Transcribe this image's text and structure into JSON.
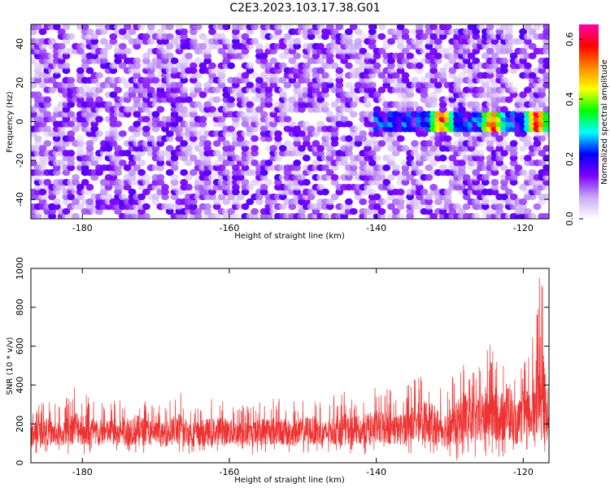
{
  "figure": {
    "title": "C2E3.2023.103.17.38.G01"
  },
  "chart_data": [
    {
      "type": "heatmap",
      "title": "C2E3.2023.103.17.38.G01",
      "xlabel": "Height of straight line (km)",
      "ylabel": "Frequency (Hz)",
      "xlim": [
        -187,
        -116.5
      ],
      "ylim": [
        -50,
        50
      ],
      "xticks": [
        -180,
        -160,
        -140,
        -120
      ],
      "yticks": [
        -40,
        -20,
        0,
        20,
        40
      ],
      "grid": false,
      "colorbar": {
        "label": "Normalized spectral amplitude",
        "range": [
          0,
          0.65
        ],
        "ticks": [
          0.0,
          0.2,
          0.4,
          0.6
        ],
        "colors": [
          "#ffffff",
          "#c9a8f5",
          "#7a00ff",
          "#0000ff",
          "#00ffff",
          "#00ff00",
          "#ffff00",
          "#ff8800",
          "#ff0000",
          "#ff00aa"
        ]
      },
      "features": [
        {
          "name": "background noise",
          "x_range": [
            -187,
            -116.5
          ],
          "freq_range": [
            -50,
            50
          ],
          "amplitude_range": [
            0.02,
            0.15
          ]
        },
        {
          "name": "signal band near 0 Hz",
          "x_range": [
            -140,
            -116.5
          ],
          "freq_center": 0,
          "freq_halfwidth": 5,
          "peak_amplitude": 0.62,
          "peak_x": [
            -131,
            -124,
            -118
          ]
        }
      ]
    },
    {
      "type": "line",
      "xlabel": "Height of straight line (km)",
      "ylabel": "SNR (10 * v/v)",
      "xlim": [
        -187,
        -116.5
      ],
      "ylim": [
        0,
        1000
      ],
      "xticks": [
        -180,
        -160,
        -140,
        -120
      ],
      "yticks": [
        0,
        200,
        400,
        600,
        800,
        1000
      ],
      "grid": false,
      "series": [
        {
          "name": "SNR",
          "color": "#ee3333",
          "x": [
            -187,
            -185,
            -183,
            -181,
            -179,
            -177,
            -175,
            -173,
            -171,
            -169,
            -167,
            -165,
            -163,
            -161,
            -159,
            -157,
            -155,
            -153,
            -151,
            -149,
            -147,
            -145,
            -143,
            -141,
            -139,
            -137,
            -135,
            -133,
            -131,
            -129,
            -128,
            -127,
            -126,
            -125,
            -124,
            -123,
            -122,
            -121,
            -120,
            -119,
            -118.5,
            -118,
            -117.5,
            -117,
            -116.5
          ],
          "min": [
            40,
            50,
            40,
            45,
            40,
            50,
            45,
            40,
            50,
            45,
            40,
            45,
            40,
            50,
            45,
            40,
            45,
            50,
            40,
            45,
            50,
            40,
            45,
            40,
            45,
            40,
            45,
            40,
            30,
            10,
            20,
            30,
            20,
            10,
            30,
            20,
            10,
            30,
            20,
            30,
            10,
            20,
            20,
            10,
            0
          ],
          "max": [
            300,
            330,
            290,
            400,
            350,
            310,
            330,
            370,
            320,
            290,
            380,
            300,
            330,
            340,
            310,
            300,
            350,
            330,
            320,
            360,
            300,
            380,
            340,
            380,
            400,
            360,
            440,
            480,
            380,
            480,
            590,
            480,
            500,
            620,
            600,
            540,
            690,
            430,
            560,
            570,
            840,
            1000,
            980,
            720,
            380
          ]
        }
      ]
    }
  ]
}
